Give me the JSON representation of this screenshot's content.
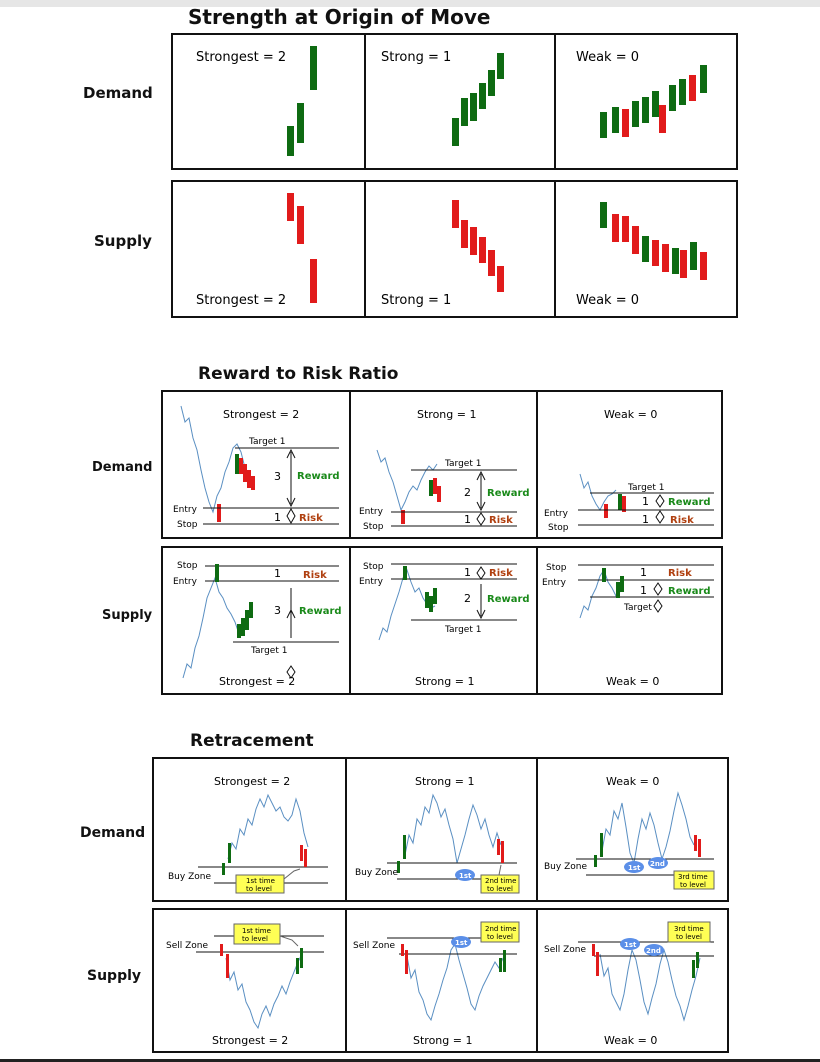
{
  "s1": {
    "title": "Strength at Origin of Move",
    "demand_label": "Demand",
    "supply_label": "Supply",
    "demand_cells": [
      "Strongest = 2",
      "Strong = 1",
      "Weak = 0"
    ],
    "supply_cells": [
      "Strongest = 2",
      "Strong = 1",
      "Weak = 0"
    ]
  },
  "s2": {
    "title": "Reward to Risk Ratio",
    "demand_label": "Demand",
    "supply_label": "Supply",
    "demand_cells": [
      "Strongest = 2",
      "Strong = 1",
      "Weak = 0"
    ],
    "supply_cells": [
      "Strongest = 2",
      "Strong = 1",
      "Weak = 0"
    ],
    "target": "Target 1",
    "target_short": "Target",
    "entry": "Entry",
    "stop": "Stop",
    "reward": "Reward",
    "risk": "Risk",
    "n3": "3",
    "n2": "2",
    "n1": "1"
  },
  "s3": {
    "title": "Retracement",
    "demand_label": "Demand",
    "supply_label": "Supply",
    "demand_cells": [
      "Strongest = 2",
      "Strong = 1",
      "Weak = 0"
    ],
    "supply_cells": [
      "Strongest = 2",
      "Strong = 1",
      "Weak = 0"
    ],
    "buy_zone": "Buy Zone",
    "sell_zone": "Sell Zone",
    "first": "1st",
    "second": "2nd",
    "first_time_a": "1st time",
    "first_time_b": "to level",
    "second_time_a": "2nd time",
    "second_time_b": "to level",
    "third_time_a": "3rd time",
    "third_time_b": "to level"
  },
  "colors": {
    "green": "#0e6b12",
    "red": "#e11b1b",
    "price_line": "#5a8fc2",
    "badge": "#5b8fe8",
    "note_bg": "#ffff55",
    "reward_text": "#1a8a1a",
    "risk_text": "#b04010"
  }
}
